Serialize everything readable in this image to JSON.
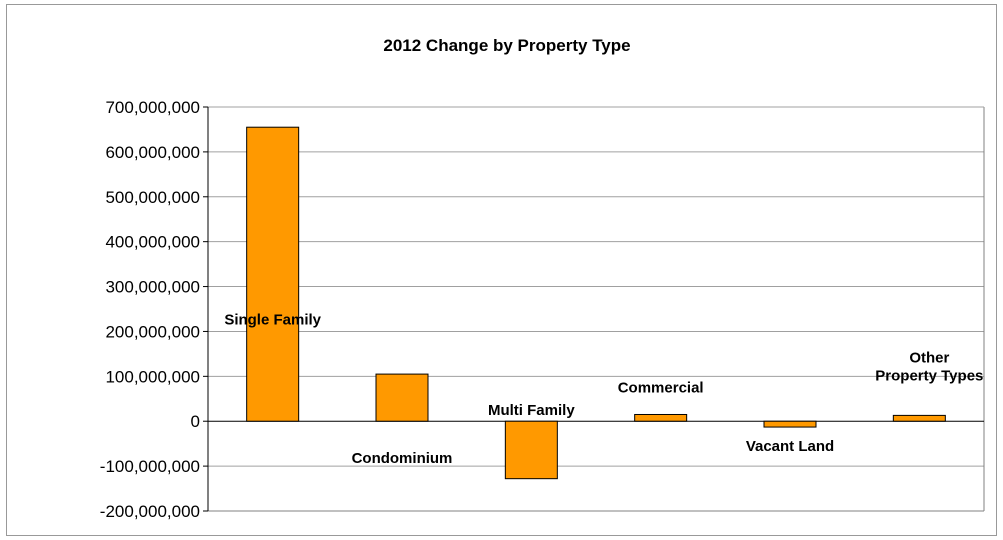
{
  "chart_data": {
    "type": "bar",
    "title": "2012 Change by Property Type",
    "xlabel": "",
    "ylabel": "",
    "ylim": [
      -200000000,
      700000000
    ],
    "yticks": [
      700000000,
      600000000,
      500000000,
      400000000,
      300000000,
      200000000,
      100000000,
      0,
      -100000000,
      -200000000
    ],
    "ytick_labels": [
      "700,000,000",
      "600,000,000",
      "500,000,000",
      "400,000,000",
      "300,000,000",
      "200,000,000",
      "100,000,000",
      "0",
      "-100,000,000",
      "-200,000,000"
    ],
    "grid": true,
    "legend": "none",
    "bar_color": "#FF9900",
    "categories": [
      [
        "Single Family"
      ],
      [
        "Condominium"
      ],
      [
        "Multi Family"
      ],
      [
        "Commercial"
      ],
      [
        "Vacant Land"
      ],
      [
        "Other",
        "Property Types"
      ]
    ],
    "values": [
      655000000,
      105000000,
      -128000000,
      15000000,
      -13000000,
      13000000
    ]
  }
}
